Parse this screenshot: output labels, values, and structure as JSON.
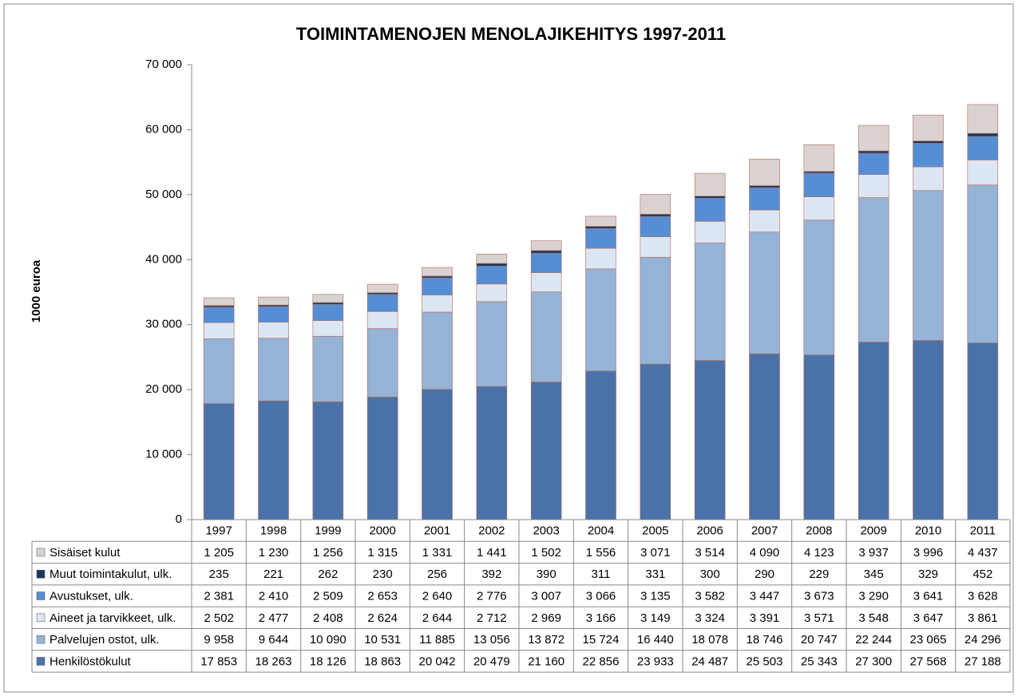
{
  "chart_data": {
    "type": "stacked-bar",
    "title": "TOIMINTAMENOJEN MENOLAJIKEHITYS 1997-2011",
    "y_label": "1000 euroa",
    "categories": [
      "1997",
      "1998",
      "1999",
      "2000",
      "2001",
      "2002",
      "2003",
      "2004",
      "2005",
      "2006",
      "2007",
      "2008",
      "2009",
      "2010",
      "2011"
    ],
    "ylim": [
      0,
      70000
    ],
    "yticks": [
      0,
      {
        "value": 10000,
        "label": "10 000"
      },
      {
        "value": 20000,
        "label": "20 000"
      },
      {
        "value": 30000,
        "label": "30 000"
      },
      {
        "value": 40000,
        "label": "40 000"
      },
      {
        "value": 50000,
        "label": "50 000"
      },
      {
        "value": 60000,
        "label": "60 000"
      },
      {
        "value": 70000,
        "label": "70 000"
      }
    ],
    "grid": false,
    "series": [
      {
        "name": "Henkilöstökulut",
        "color": "#4a72a8",
        "values": [
          17853,
          18263,
          18126,
          18863,
          20042,
          20479,
          21160,
          22856,
          23933,
          24487,
          25503,
          25343,
          27300,
          27568,
          27188
        ],
        "value_labels": [
          "17 853",
          "18 263",
          "18 126",
          "18 863",
          "20 042",
          "20 479",
          "21 160",
          "22 856",
          "23 933",
          "24 487",
          "25 503",
          "25 343",
          "27 300",
          "27 568",
          "27 188"
        ]
      },
      {
        "name": "Palvelujen ostot, ulk.",
        "color": "#95b3d7",
        "values": [
          9958,
          9644,
          10090,
          10531,
          11885,
          13056,
          13872,
          15724,
          16440,
          18078,
          18746,
          20747,
          22244,
          23065,
          24296
        ],
        "value_labels": [
          "9 958",
          "9 644",
          "10 090",
          "10 531",
          "11 885",
          "13 056",
          "13 872",
          "15 724",
          "16 440",
          "18 078",
          "18 746",
          "20 747",
          "22 244",
          "23 065",
          "24 296"
        ]
      },
      {
        "name": "Aineet ja tarvikkeet, ulk.",
        "color": "#dce6f2",
        "values": [
          2502,
          2477,
          2408,
          2624,
          2644,
          2712,
          2969,
          3166,
          3149,
          3324,
          3391,
          3571,
          3548,
          3647,
          3861
        ],
        "value_labels": [
          "2 502",
          "2 477",
          "2 408",
          "2 624",
          "2 644",
          "2 712",
          "2 969",
          "3 166",
          "3 149",
          "3 324",
          "3 391",
          "3 571",
          "3 548",
          "3 647",
          "3 861"
        ]
      },
      {
        "name": "Avustukset, ulk.",
        "color": "#558ed5",
        "values": [
          2381,
          2410,
          2509,
          2653,
          2640,
          2776,
          3007,
          3066,
          3135,
          3582,
          3447,
          3673,
          3290,
          3641,
          3628
        ],
        "value_labels": [
          "2 381",
          "2 410",
          "2 509",
          "2 653",
          "2 640",
          "2 776",
          "3 007",
          "3 066",
          "3 135",
          "3 582",
          "3 447",
          "3 673",
          "3 290",
          "3 641",
          "3 628"
        ]
      },
      {
        "name": "Muut toimintakulut, ulk.",
        "color": "#17375e",
        "values": [
          235,
          221,
          262,
          230,
          256,
          392,
          390,
          311,
          331,
          300,
          290,
          229,
          345,
          329,
          452
        ]
      },
      {
        "name": "Sisäiset kulut",
        "color": "#d9d2d0",
        "values": [
          1205,
          1230,
          1256,
          1315,
          1331,
          1441,
          1502,
          1556,
          3071,
          3514,
          4090,
          4123,
          3937,
          3996,
          4437
        ],
        "value_labels": [
          "1 205",
          "1 230",
          "1 256",
          "1 315",
          "1 331",
          "1 441",
          "1 502",
          "1 556",
          "3 071",
          "3 514",
          "4 090",
          "4 123",
          "3 937",
          "3 996",
          "4 437"
        ]
      }
    ]
  }
}
